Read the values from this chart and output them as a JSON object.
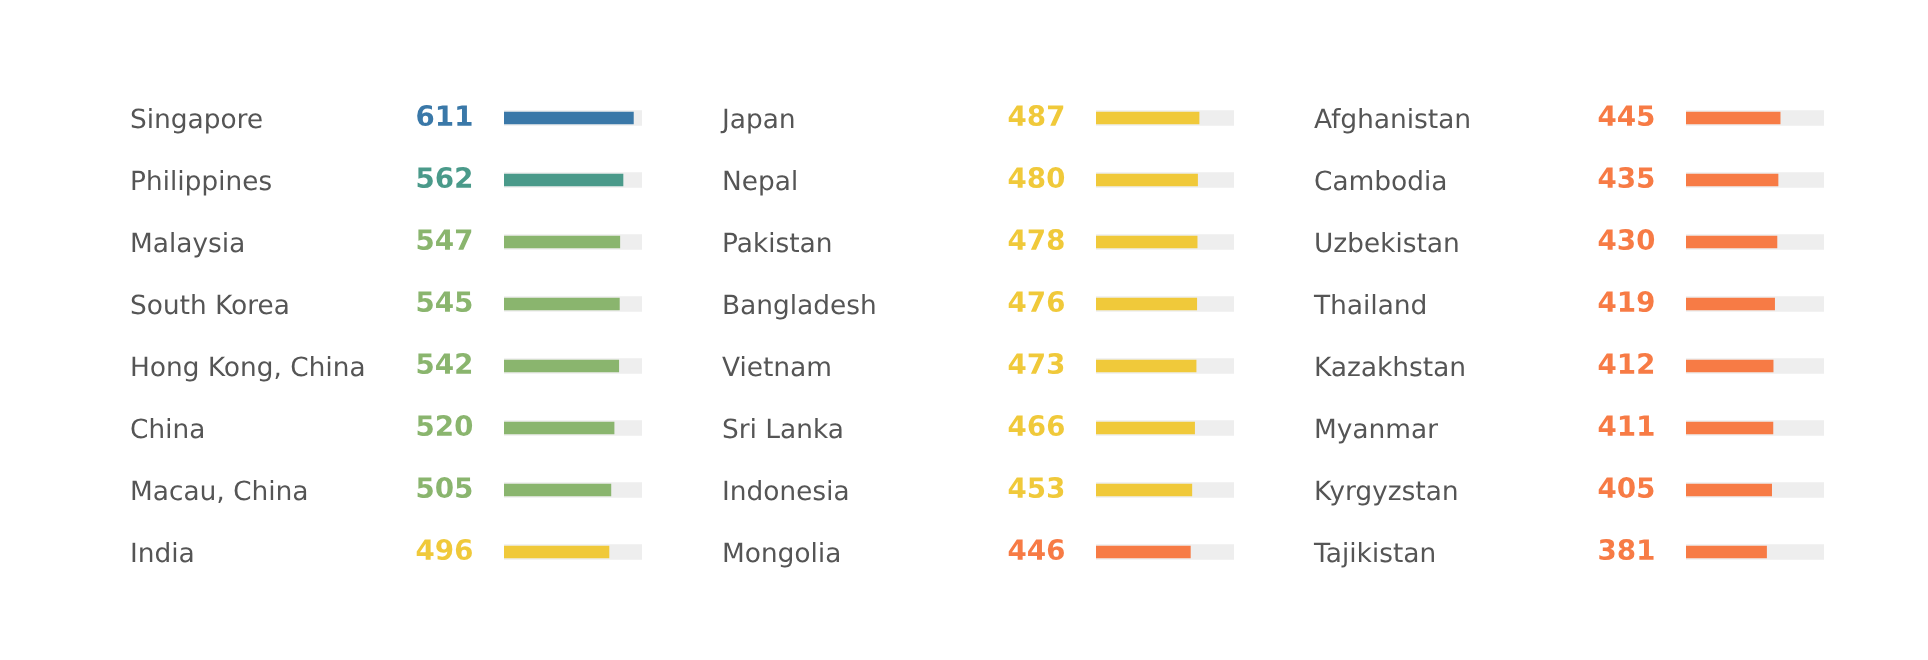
{
  "chart_data": [
    {
      "type": "bar",
      "orientation": "horizontal",
      "data_labels": true,
      "tick_labels": "y",
      "grid": false,
      "xlim": [
        0,
        650
      ],
      "categories": [
        "Singapore",
        "Philippines",
        "Malaysia",
        "South Korea",
        "Hong Kong, China",
        "China",
        "Macau, China",
        "India"
      ],
      "values": [
        611,
        562,
        547,
        545,
        542,
        520,
        505,
        496
      ],
      "colors": [
        "#3a78a8",
        "#4a9a8a",
        "#8ab56e",
        "#8ab56e",
        "#8ab56e",
        "#8ab56e",
        "#8ab56e",
        "#f0c93a"
      ]
    },
    {
      "type": "bar",
      "orientation": "horizontal",
      "data_labels": true,
      "tick_labels": "y",
      "grid": false,
      "xlim": [
        0,
        650
      ],
      "categories": [
        "Japan",
        "Nepal",
        "Pakistan",
        "Bangladesh",
        "Vietnam",
        "Sri Lanka",
        "Indonesia",
        "Mongolia"
      ],
      "values": [
        487,
        480,
        478,
        476,
        473,
        466,
        453,
        446
      ],
      "colors": [
        "#f0c93a",
        "#f0c93a",
        "#f0c93a",
        "#f0c93a",
        "#f0c93a",
        "#f0c93a",
        "#f0c93a",
        "#f77b45"
      ]
    },
    {
      "type": "bar",
      "orientation": "horizontal",
      "data_labels": true,
      "tick_labels": "y",
      "grid": false,
      "xlim": [
        0,
        650
      ],
      "categories": [
        "Afghanistan",
        "Cambodia",
        "Uzbekistan",
        "Thailand",
        "Kazakhstan",
        "Myanmar",
        "Kyrgyzstan",
        "Tajikistan"
      ],
      "values": [
        445,
        435,
        430,
        419,
        412,
        411,
        405,
        381
      ],
      "colors": [
        "#f77b45",
        "#f77b45",
        "#f77b45",
        "#f77b45",
        "#f77b45",
        "#f77b45",
        "#f77b45",
        "#f77b45"
      ]
    }
  ]
}
